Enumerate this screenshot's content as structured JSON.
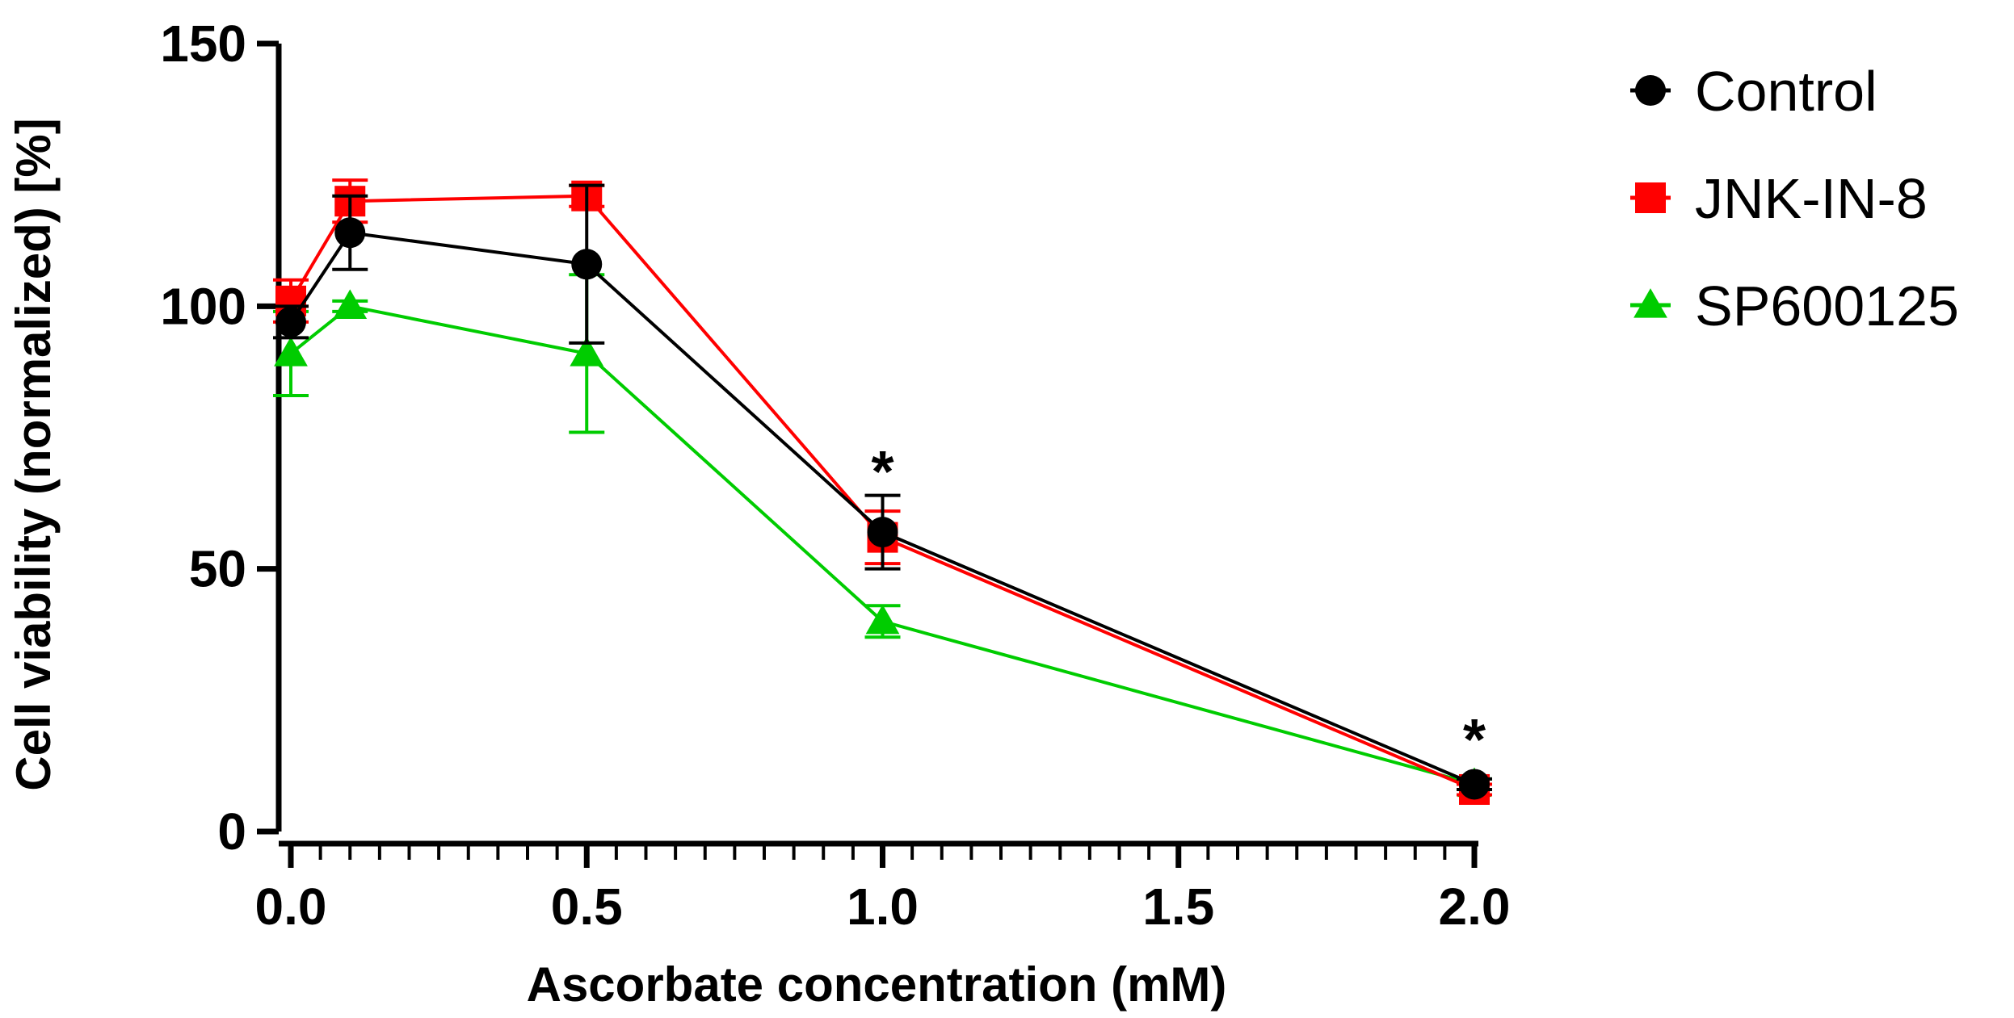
{
  "chart_data": {
    "type": "line",
    "title": "",
    "xlabel": "Ascorbate concentration (mM)",
    "ylabel": "Cell viability (normalized) [%]",
    "xlim": [
      0,
      2.0
    ],
    "ylim": [
      0,
      150
    ],
    "x_ticks": [
      0.0,
      0.5,
      1.0,
      1.5,
      2.0
    ],
    "x_tick_labels": [
      "0.0",
      "0.5",
      "1.0",
      "1.5",
      "2.0"
    ],
    "x_minor_step": 0.05,
    "y_ticks": [
      0,
      50,
      100,
      150
    ],
    "y_tick_labels": [
      "0",
      "50",
      "100",
      "150"
    ],
    "grid": false,
    "legend_position": "right",
    "series": [
      {
        "name": "Control",
        "color": "#000000",
        "marker": "circle",
        "x": [
          0,
          0.1,
          0.5,
          1.0,
          2.0
        ],
        "y": [
          97,
          114,
          108,
          57,
          9
        ],
        "err": [
          3,
          7,
          15,
          7,
          1
        ]
      },
      {
        "name": "JNK-IN-8",
        "color": "#ff0000",
        "marker": "square",
        "x": [
          0,
          0.1,
          0.5,
          1.0,
          2.0
        ],
        "y": [
          101,
          120,
          121,
          56,
          8
        ],
        "err": [
          4,
          4,
          2,
          5,
          1
        ]
      },
      {
        "name": "SP600125",
        "color": "#00cc00",
        "marker": "triangle",
        "x": [
          0,
          0.1,
          0.5,
          1.0,
          2.0
        ],
        "y": [
          91,
          100,
          91,
          40,
          9
        ],
        "err": [
          8,
          1,
          15,
          3,
          1
        ]
      }
    ],
    "annotations": [
      {
        "text": "*",
        "x": 1.0,
        "y": 69
      },
      {
        "text": "*",
        "x": 2.0,
        "y": 18
      }
    ]
  }
}
